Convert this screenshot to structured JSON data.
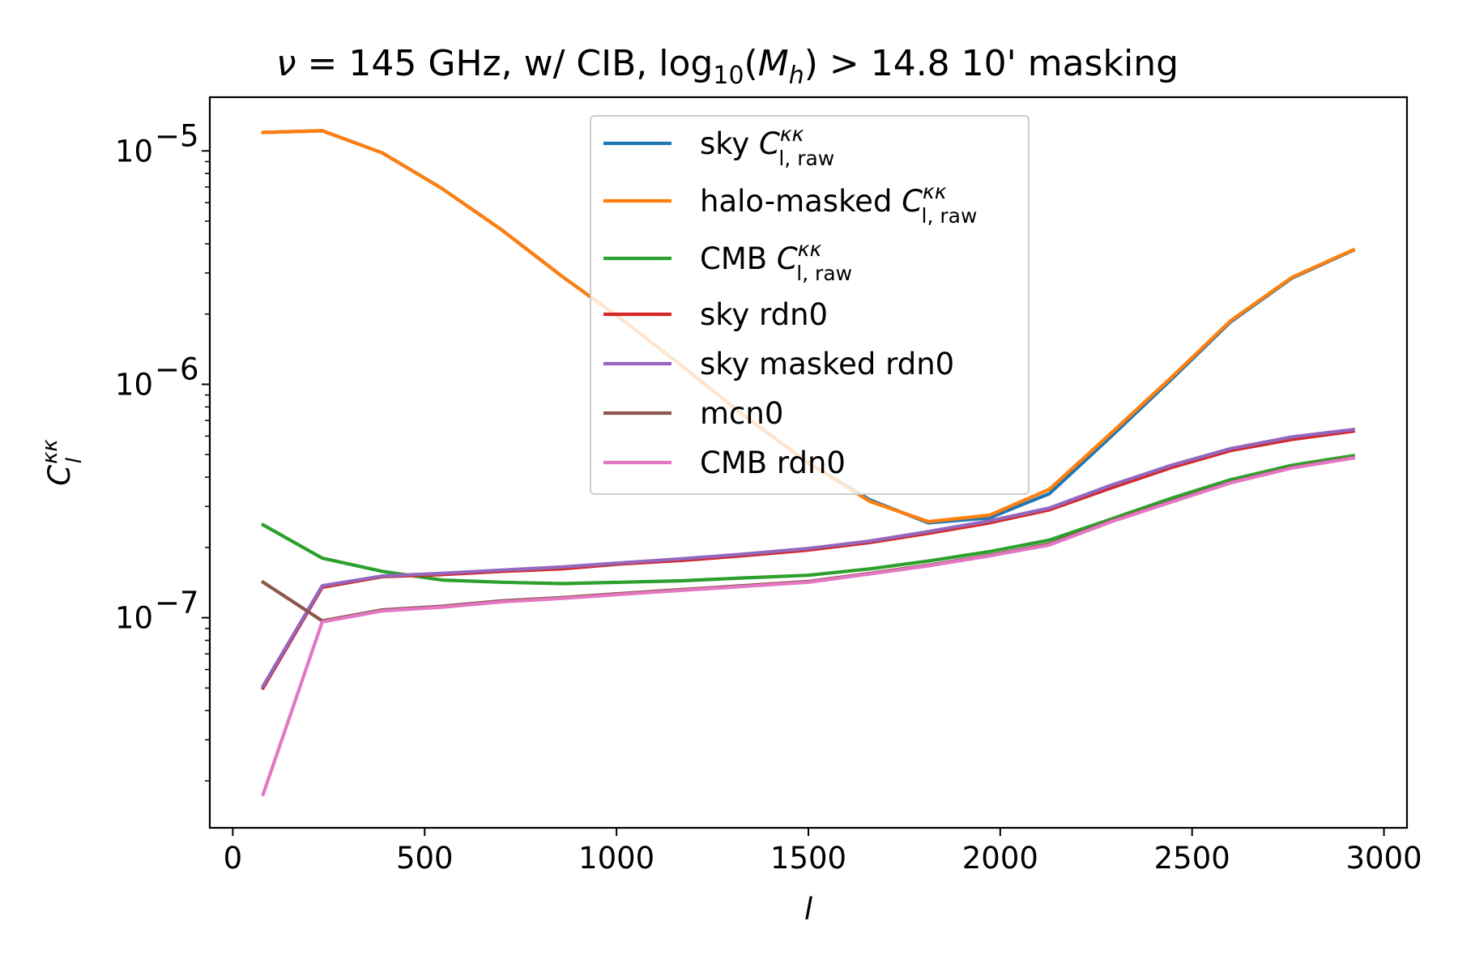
{
  "chart_data": {
    "type": "line",
    "title": {
      "prefix": "ν",
      "part1": " = 145 GHz, w/ CIB, log",
      "sub": "10",
      "part2": "(",
      "var": "M",
      "var_sub": "h",
      "part3": ") > 14.8 10' masking"
    },
    "xlabel": "l",
    "ylabel": {
      "main": "C",
      "sup": "κκ",
      "sub": "l"
    },
    "xlim": [
      -60,
      3060
    ],
    "ylim_log10": [
      -7.9,
      -4.77
    ],
    "yscale": "log",
    "x_ticks": [
      0,
      500,
      1000,
      1500,
      2000,
      2500,
      3000
    ],
    "x_tick_labels": [
      "0",
      "500",
      "1000",
      "1500",
      "2000",
      "2500",
      "3000"
    ],
    "y_ticks": [
      1e-07,
      1e-06,
      1e-05
    ],
    "y_tick_labels": [
      {
        "base": "10",
        "exp": "−7"
      },
      {
        "base": "10",
        "exp": "−6"
      },
      {
        "base": "10",
        "exp": "−5"
      }
    ],
    "y_minor_ticks": [
      2e-08,
      3e-08,
      4e-08,
      5e-08,
      6e-08,
      7e-08,
      8e-08,
      9e-08,
      2e-07,
      3e-07,
      4e-07,
      5e-07,
      6e-07,
      7e-07,
      8e-07,
      9e-07,
      2e-06,
      3e-06,
      4e-06,
      5e-06,
      6e-06,
      7e-06,
      8e-06,
      9e-06
    ],
    "grid": false,
    "legend_position": "upper-center",
    "x": [
      79,
      233,
      390,
      545,
      700,
      858,
      1013,
      1170,
      1325,
      1500,
      1660,
      1813,
      1972,
      2128,
      2290,
      2446,
      2600,
      2760,
      2920
    ],
    "series": [
      {
        "label_main": "sky ",
        "label_sym": "C",
        "label_sup": "κκ",
        "label_sub": "l, raw",
        "color": "#1f77b4",
        "values": [
          1.2e-05,
          1.22e-05,
          9.8e-06,
          6.9e-06,
          4.6e-06,
          2.9e-06,
          1.9e-06,
          1.2e-06,
          7.5e-07,
          4.6e-07,
          3.2e-07,
          2.55e-07,
          2.68e-07,
          3.4e-07,
          6e-07,
          1.05e-06,
          1.85e-06,
          2.85e-06,
          3.75e-06
        ]
      },
      {
        "label_main": "halo-masked ",
        "label_sym": "C",
        "label_sup": "κκ",
        "label_sub": "l, raw",
        "color": "#ff7f0e",
        "values": [
          1.2e-05,
          1.22e-05,
          9.8e-06,
          6.9e-06,
          4.6e-06,
          2.9e-06,
          1.9e-06,
          1.2e-06,
          7.5e-07,
          4.6e-07,
          3.15e-07,
          2.58e-07,
          2.75e-07,
          3.55e-07,
          6.2e-07,
          1.07e-06,
          1.87e-06,
          2.87e-06,
          3.77e-06
        ]
      },
      {
        "label_main": "CMB ",
        "label_sym": "C",
        "label_sup": "κκ",
        "label_sub": "l, raw",
        "color": "#2ca02c",
        "values": [
          2.5e-07,
          1.8e-07,
          1.58e-07,
          1.45e-07,
          1.42e-07,
          1.4e-07,
          1.42e-07,
          1.44e-07,
          1.48e-07,
          1.52e-07,
          1.62e-07,
          1.75e-07,
          1.92e-07,
          2.15e-07,
          2.65e-07,
          3.25e-07,
          3.9e-07,
          4.5e-07,
          4.95e-07
        ]
      },
      {
        "label_main": "sky rdn0",
        "color": "#d62728",
        "values": [
          5e-08,
          1.35e-07,
          1.5e-07,
          1.53e-07,
          1.58e-07,
          1.62e-07,
          1.7e-07,
          1.76e-07,
          1.84e-07,
          1.95e-07,
          2.1e-07,
          2.3e-07,
          2.55e-07,
          2.9e-07,
          3.6e-07,
          4.4e-07,
          5.2e-07,
          5.8e-07,
          6.3e-07
        ]
      },
      {
        "label_main": "sky masked rdn0",
        "color": "#9467bd",
        "values": [
          5.1e-08,
          1.37e-07,
          1.51e-07,
          1.55e-07,
          1.6e-07,
          1.65e-07,
          1.72e-07,
          1.79e-07,
          1.87e-07,
          1.98e-07,
          2.13e-07,
          2.34e-07,
          2.6e-07,
          2.95e-07,
          3.7e-07,
          4.5e-07,
          5.3e-07,
          5.95e-07,
          6.4e-07
        ]
      },
      {
        "label_main": "mcn0",
        "color": "#8c564b",
        "values": [
          1.42e-07,
          9.7e-08,
          1.08e-07,
          1.12e-07,
          1.18e-07,
          1.22e-07,
          1.27e-07,
          1.32e-07,
          1.37e-07,
          1.43e-07,
          1.55e-07,
          1.68e-07,
          1.85e-07,
          2.07e-07,
          2.6e-07,
          3.15e-07,
          3.8e-07,
          4.4e-07,
          4.85e-07
        ]
      },
      {
        "label_main": "CMB rdn0",
        "color": "#e377c2",
        "values": [
          1.75e-08,
          9.6e-08,
          1.07e-07,
          1.11e-07,
          1.17e-07,
          1.21e-07,
          1.26e-07,
          1.31e-07,
          1.36e-07,
          1.42e-07,
          1.54e-07,
          1.67e-07,
          1.84e-07,
          2.05e-07,
          2.58e-07,
          3.13e-07,
          3.78e-07,
          4.38e-07,
          4.83e-07
        ]
      }
    ]
  }
}
